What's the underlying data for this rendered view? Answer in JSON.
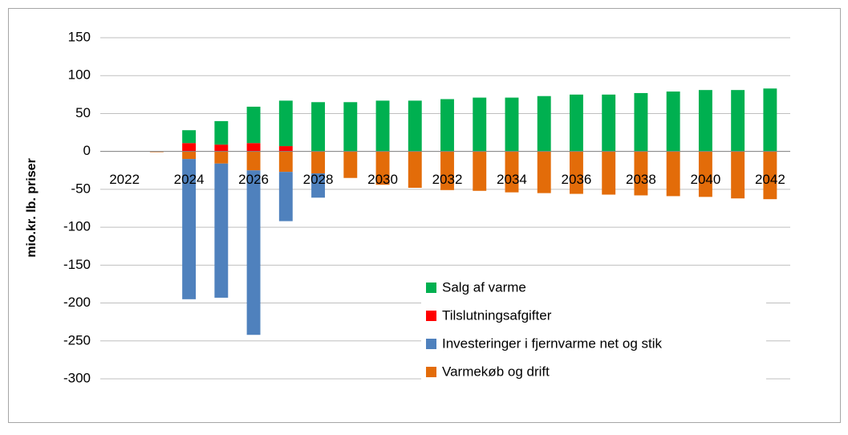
{
  "chart_data": {
    "type": "bar",
    "stacked": true,
    "ylabel": "mio.kr. lb. priser",
    "categories": [
      "2022",
      null,
      "2024",
      null,
      "2026",
      null,
      "2028",
      null,
      "2030",
      null,
      "2032",
      null,
      "2034",
      null,
      "2036",
      null,
      "2038",
      null,
      "2040",
      null,
      "2042"
    ],
    "series": [
      {
        "name": "Salg af varme",
        "color": "#00b050",
        "values": [
          0,
          0,
          17,
          31,
          48,
          60,
          65,
          65,
          67,
          67,
          69,
          71,
          71,
          73,
          75,
          75,
          77,
          79,
          81,
          81,
          83
        ]
      },
      {
        "name": "Tilslutningsafgifter",
        "color": "#ff0000",
        "values": [
          0,
          0,
          11,
          9,
          11,
          7,
          0,
          0,
          0,
          0,
          0,
          0,
          0,
          0,
          0,
          0,
          0,
          0,
          0,
          0,
          0
        ]
      },
      {
        "name": "Investeringer i fjernvarme net og stik",
        "color": "#4f81bd",
        "values": [
          0,
          0,
          -185,
          -177,
          -217,
          -65,
          -32,
          0,
          0,
          0,
          0,
          0,
          0,
          0,
          0,
          0,
          0,
          0,
          0,
          0,
          0
        ]
      },
      {
        "name": "Varmekøb og drift",
        "color": "#e36c09",
        "values": [
          0,
          -1,
          -10,
          -16,
          -25,
          -27,
          -29,
          -35,
          -44,
          -48,
          -51,
          -52,
          -54,
          -55,
          -56,
          -57,
          -58,
          -59,
          -60,
          -62,
          -63
        ]
      }
    ],
    "ylim": [
      -300,
      150
    ],
    "yticks": [
      -300,
      -250,
      -200,
      -150,
      -100,
      -50,
      0,
      50,
      100,
      150
    ],
    "grid": true,
    "legend": "lower right"
  }
}
